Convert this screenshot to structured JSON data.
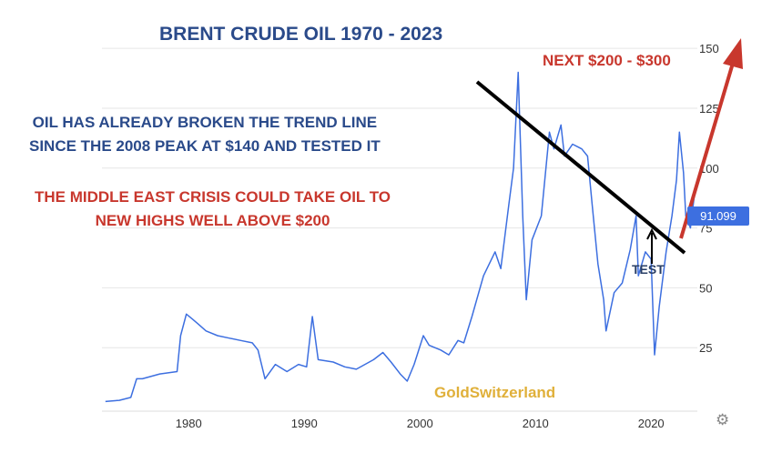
{
  "annotations": {
    "title": "BRENT CRUDE OIL  1970 - 2023",
    "next_target": "NEXT $200 - $300",
    "trend_note_1": "OIL HAS ALREADY BROKEN THE TREND LINE",
    "trend_note_2": "SINCE THE 2008 PEAK AT $140 AND TESTED IT",
    "crisis_note_1": "THE MIDDLE EAST CRISIS COULD TAKE OIL TO",
    "crisis_note_2": "NEW HIGHS WELL ABOVE $200",
    "test_label": "TEST",
    "watermark": "GoldSwitzerland"
  },
  "colors": {
    "price_line": "#3d6fe0",
    "trend_line": "#000000",
    "arrow": "#c8372d",
    "title": "#2a4a8a",
    "red_text": "#c8372d",
    "watermark": "#e0b03a",
    "price_tag": "#3d6fe0"
  },
  "settings_icon": "gear-icon",
  "chart_data": {
    "type": "line",
    "title": "BRENT CRUDE OIL  1970 - 2023",
    "xlabel": "",
    "ylabel": "",
    "xlim": [
      1972.5,
      2024
    ],
    "ylim": [
      0,
      155
    ],
    "x_ticks": [
      1980,
      1990,
      2000,
      2010,
      2020
    ],
    "y_ticks": [
      25,
      50,
      75,
      100,
      125,
      150
    ],
    "y_axis_position": "right",
    "grid": "horizontal",
    "last_price": "91.099",
    "series": [
      {
        "x": [
          1972.8,
          1973.5,
          1974.0,
          1975.0,
          1975.5,
          1976.0,
          1977.5,
          1979.0,
          1979.3,
          1979.8,
          1980.3,
          1980.8,
          1981.5,
          1982.5,
          1983.5,
          1984.5,
          1985.5,
          1986.0,
          1986.6,
          1987.5,
          1988.5,
          1989.5,
          1990.2,
          1990.7,
          1991.2,
          1992.5,
          1993.5,
          1994.5,
          1996.0,
          1996.8,
          1997.5,
          1998.3,
          1998.9,
          1999.5,
          2000.3,
          2000.8,
          2001.8,
          2002.5,
          2003.3,
          2003.8,
          2004.5,
          2005.5,
          2006.5,
          2007.0,
          2007.7,
          2008.1,
          2008.5,
          2008.9,
          2009.2,
          2009.7,
          2010.5,
          2011.2,
          2011.6,
          2012.2,
          2012.5,
          2013.2,
          2014.0,
          2014.5,
          2014.9,
          2015.4,
          2015.9,
          2016.1,
          2016.8,
          2017.5,
          2018.2,
          2018.7,
          2018.9,
          2019.5,
          2020.0,
          2020.3,
          2020.7,
          2021.3,
          2021.8,
          2022.2,
          2022.45,
          2022.8,
          2023.0,
          2023.4,
          2023.7,
          2023.85
        ],
        "y": [
          2.5,
          2.8,
          3.0,
          4.2,
          12,
          12,
          14,
          15,
          30,
          39,
          37,
          35,
          32,
          30,
          29,
          28,
          27,
          24,
          12,
          18,
          15,
          18,
          17,
          38,
          20,
          19,
          17,
          16,
          20,
          23,
          19,
          14,
          11,
          18,
          30,
          26,
          24,
          22,
          28,
          27,
          38,
          55,
          65,
          58,
          85,
          100,
          140,
          80,
          45,
          70,
          80,
          115,
          108,
          118,
          105,
          110,
          108,
          105,
          85,
          60,
          45,
          32,
          48,
          52,
          66,
          80,
          55,
          65,
          62,
          22,
          42,
          65,
          80,
          95,
          115,
          98,
          80,
          75,
          87,
          91.1
        ]
      }
    ]
  }
}
